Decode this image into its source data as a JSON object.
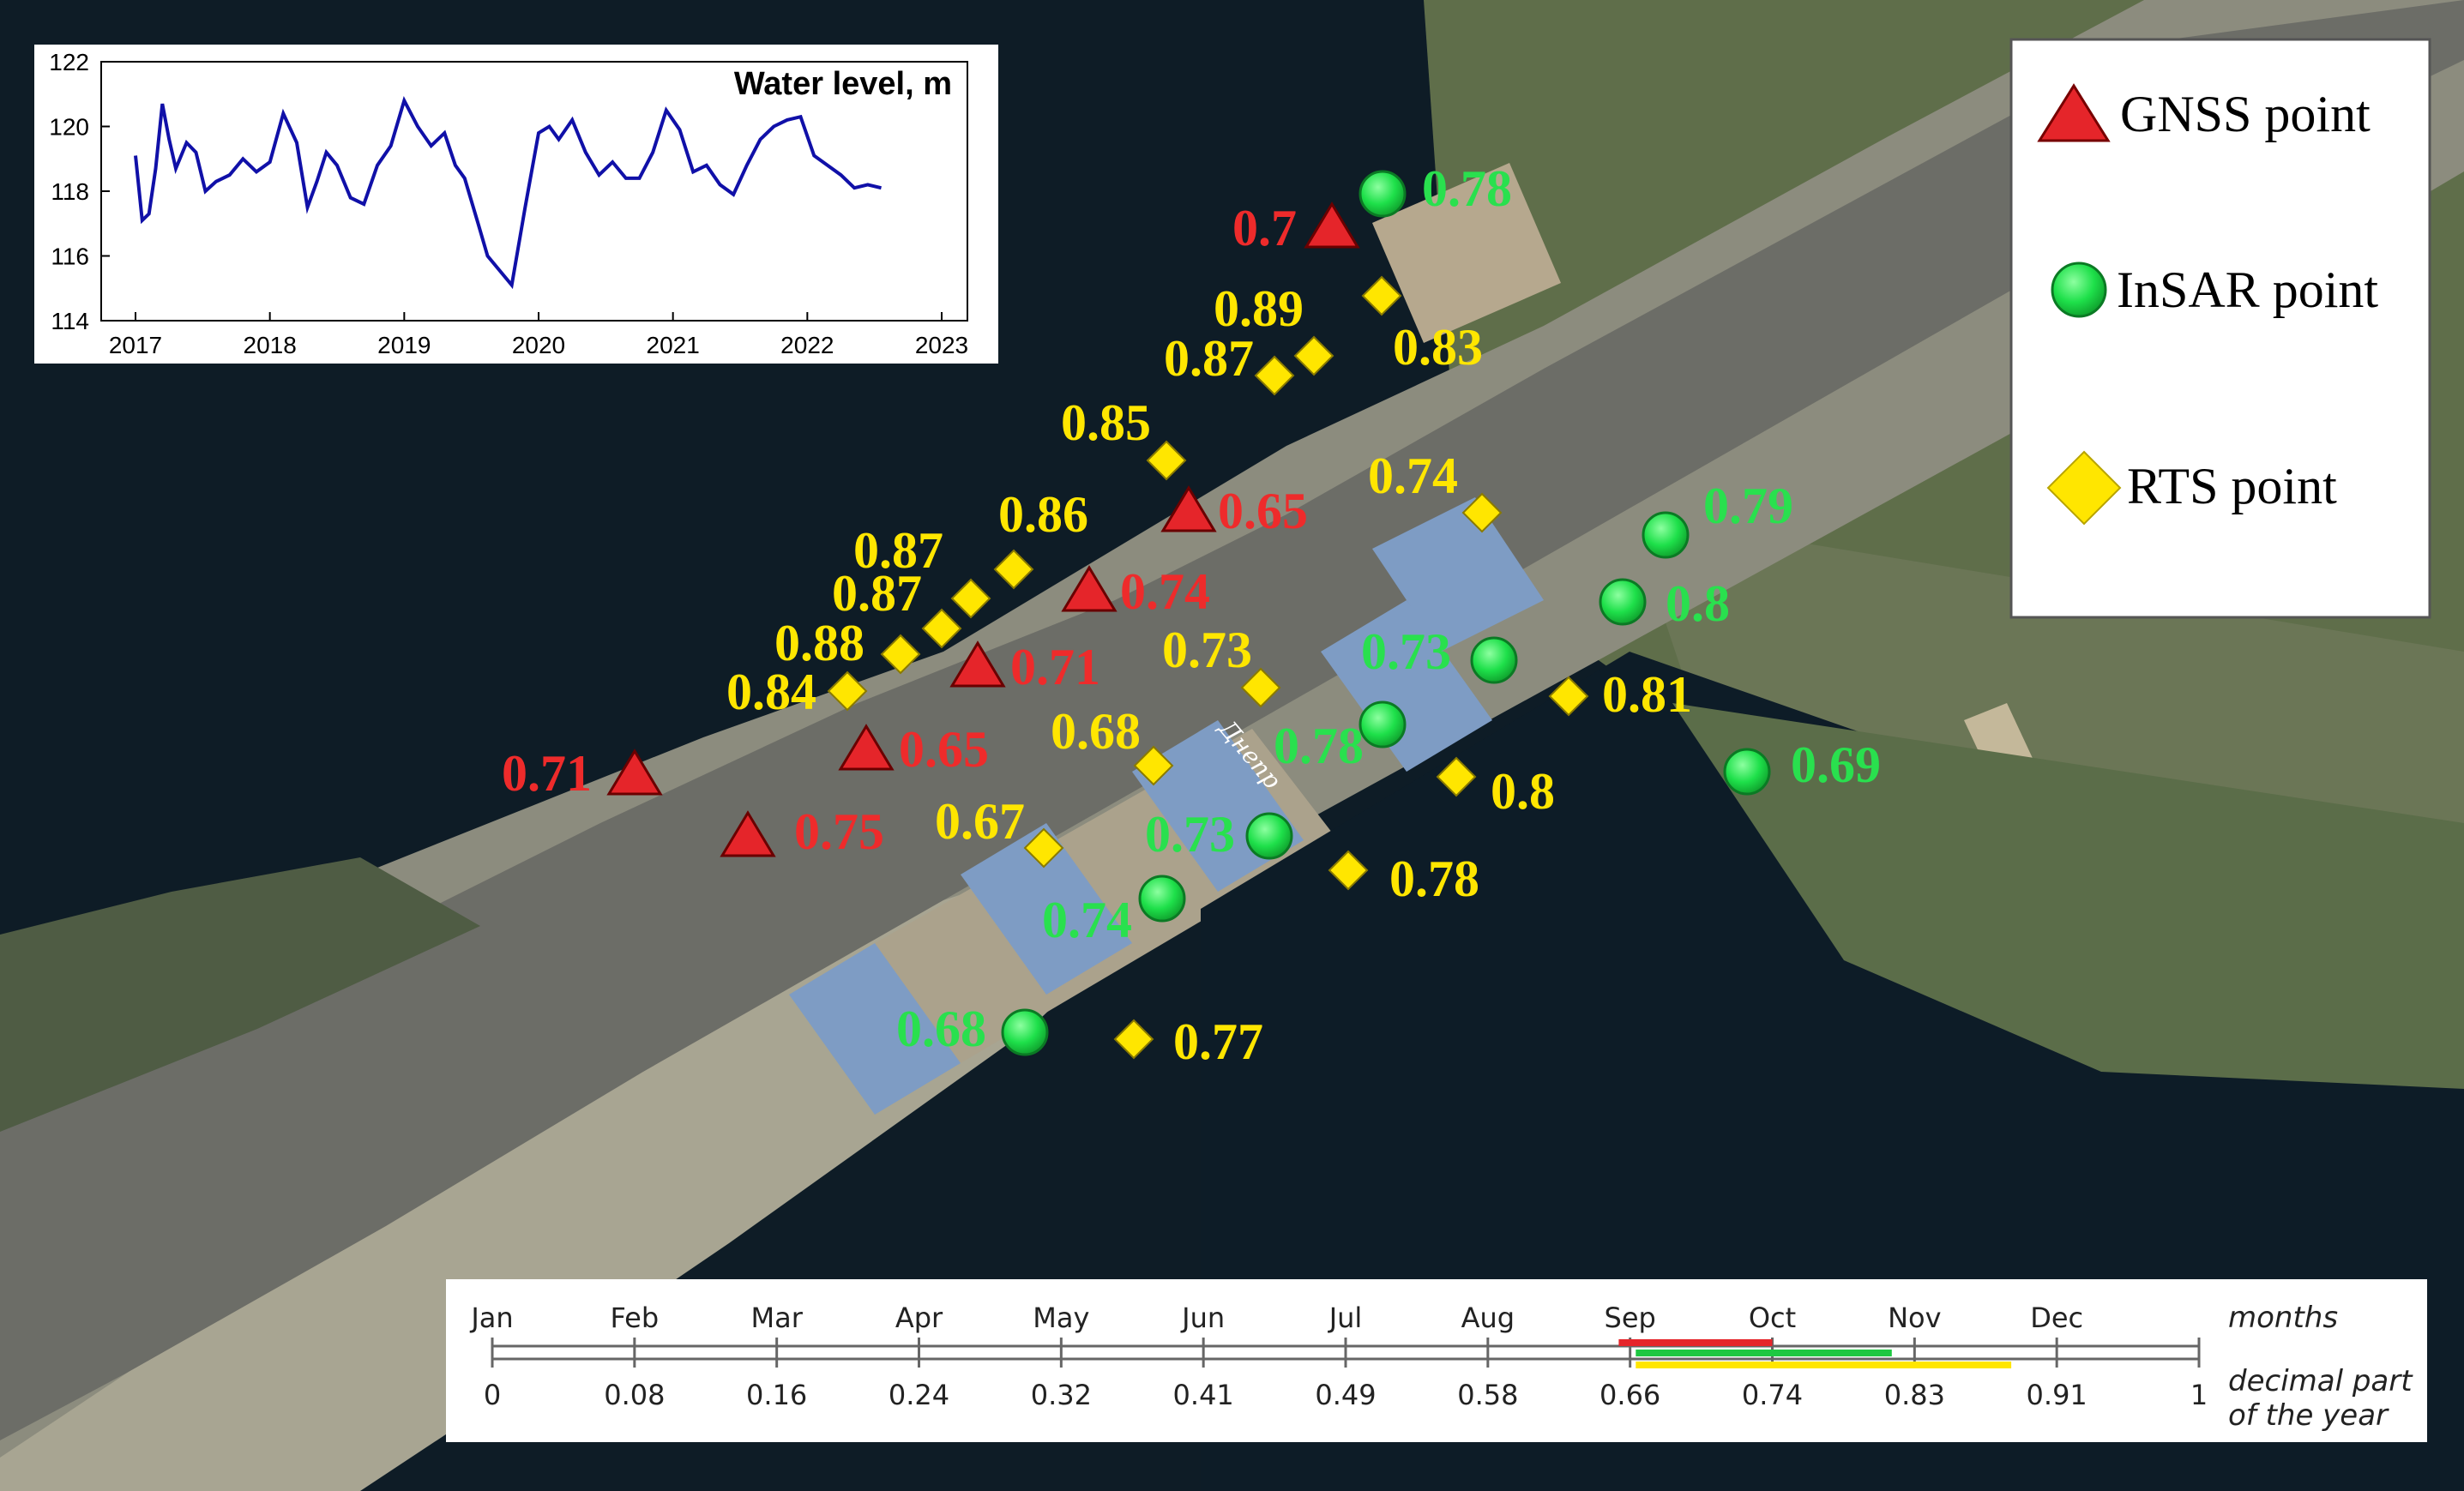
{
  "colors": {
    "gnss": "#e5252a",
    "insar": "#1ee04a",
    "rts": "#ffe600",
    "gnss_label": "#ee2b2b",
    "insar_label": "#29e04e",
    "rts_label": "#ffe600",
    "water_line": "#1010a8"
  },
  "map_caption": "Днепр",
  "legend": {
    "gnss": "GNSS point",
    "insar": "InSAR point",
    "rts": "RTS point"
  },
  "points": {
    "gnss": [
      "0.7",
      "0.65",
      "0.74",
      "0.71",
      "0.65",
      "0.71",
      "0.75"
    ],
    "insar": [
      "0.78",
      "0.79",
      "0.8",
      "0.73",
      "0.78",
      "0.69",
      "0.73",
      "0.74",
      "0.68"
    ],
    "rts": [
      "0.83",
      "0.89",
      "0.87",
      "0.85",
      "0.74",
      "0.86",
      "0.87",
      "0.87",
      "0.88",
      "0.84",
      "0.73",
      "0.81",
      "0.68",
      "0.8",
      "0.67",
      "0.78",
      "0.77"
    ]
  },
  "chart_data": {
    "type": "line",
    "title": "Water level, m",
    "x_ticks": [
      "2017",
      "2018",
      "2019",
      "2020",
      "2021",
      "2022",
      "2023"
    ],
    "y_ticks": [
      "114",
      "116",
      "118",
      "120",
      "122"
    ],
    "xlim": [
      2017,
      2023
    ],
    "ylim": [
      114,
      122
    ],
    "grid": false,
    "series": [
      {
        "color": "#1010a8",
        "x": [
          2017.0,
          2017.05,
          2017.1,
          2017.15,
          2017.2,
          2017.25,
          2017.3,
          2017.38,
          2017.45,
          2017.52,
          2017.6,
          2017.7,
          2017.8,
          2017.9,
          2018.0,
          2018.1,
          2018.2,
          2018.28,
          2018.35,
          2018.42,
          2018.5,
          2018.6,
          2018.7,
          2018.8,
          2018.9,
          2019.0,
          2019.1,
          2019.2,
          2019.3,
          2019.38,
          2019.45,
          2019.55,
          2019.62,
          2019.7,
          2019.8,
          2019.9,
          2020.0,
          2020.08,
          2020.15,
          2020.25,
          2020.35,
          2020.45,
          2020.55,
          2020.65,
          2020.75,
          2020.85,
          2020.95,
          2021.05,
          2021.15,
          2021.25,
          2021.35,
          2021.45,
          2021.55,
          2021.65,
          2021.75,
          2021.85,
          2021.95,
          2022.05,
          2022.15,
          2022.25,
          2022.35,
          2022.45,
          2022.55
        ],
        "y": [
          119.1,
          117.1,
          117.3,
          118.7,
          120.7,
          119.6,
          118.7,
          119.5,
          119.2,
          118.0,
          118.3,
          118.5,
          119.0,
          118.6,
          118.9,
          120.4,
          119.5,
          117.5,
          118.3,
          119.2,
          118.8,
          117.8,
          117.6,
          118.8,
          119.4,
          120.8,
          120.0,
          119.4,
          119.8,
          118.8,
          118.4,
          117.0,
          116.0,
          115.6,
          115.1,
          117.5,
          119.8,
          120.0,
          119.6,
          120.2,
          119.2,
          118.5,
          118.9,
          118.4,
          118.4,
          119.2,
          120.5,
          119.9,
          118.6,
          118.8,
          118.2,
          117.9,
          118.8,
          119.6,
          120.0,
          120.2,
          120.3,
          119.1,
          118.8,
          118.5,
          118.1,
          118.2,
          118.1
        ]
      }
    ]
  },
  "timeline": {
    "months": [
      "Jan",
      "Feb",
      "Mar",
      "Apr",
      "May",
      "Jun",
      "Jul",
      "Aug",
      "Sep",
      "Oct",
      "Nov",
      "Dec"
    ],
    "decimals": [
      "0",
      "0.08",
      "0.16",
      "0.24",
      "0.32",
      "0.41",
      "0.49",
      "0.58",
      "0.66",
      "0.74",
      "0.83",
      "0.91",
      "1"
    ],
    "months_label": "months",
    "decimal_label_1": "decimal part",
    "decimal_label_2": "of the year",
    "bars": [
      {
        "color": "#e5252a",
        "start": 0.66,
        "end": 0.75
      },
      {
        "color": "#1ec842",
        "start": 0.67,
        "end": 0.82
      },
      {
        "color": "#ffe600",
        "start": 0.67,
        "end": 0.89
      }
    ]
  }
}
